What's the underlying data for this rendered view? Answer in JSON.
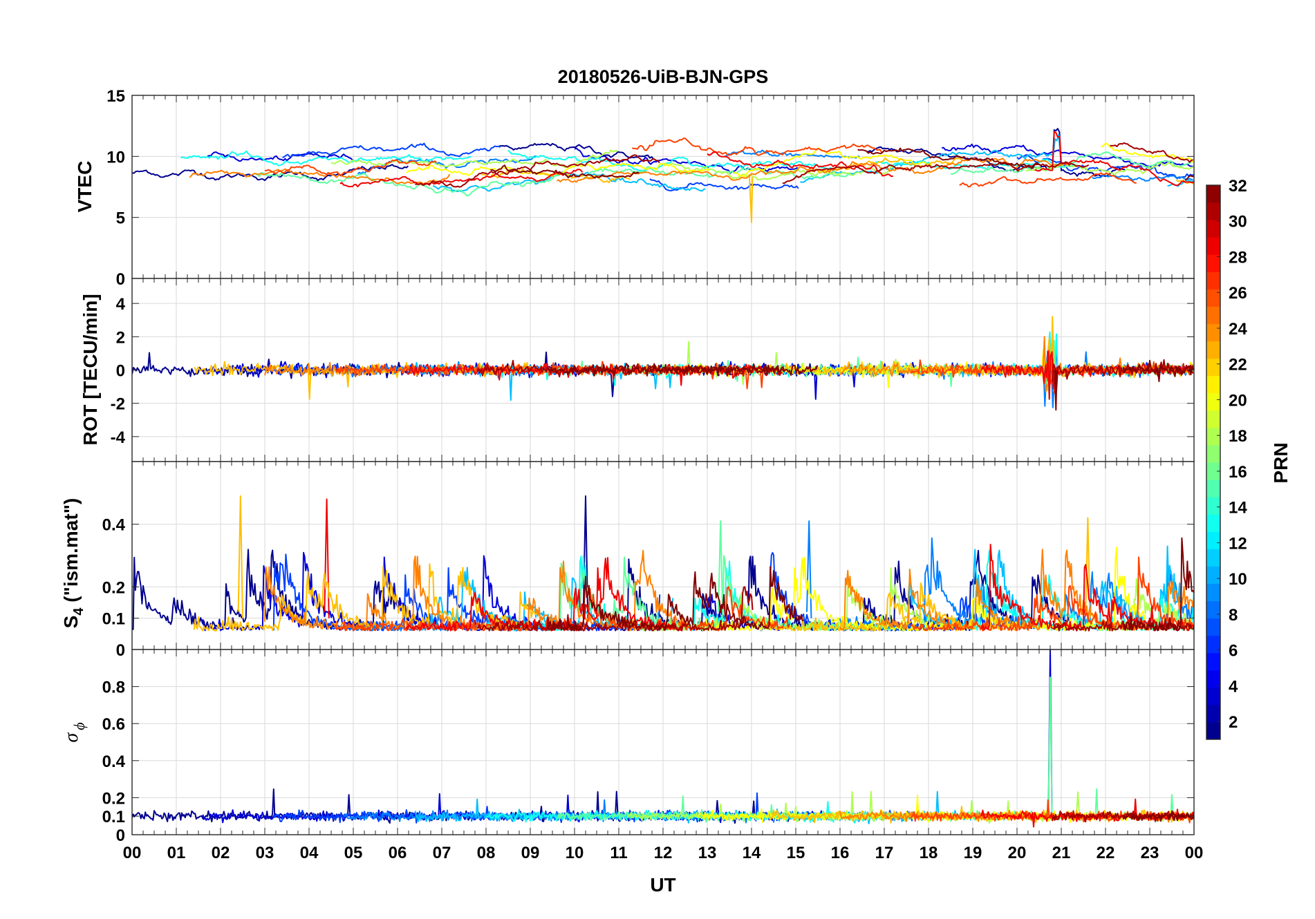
{
  "chart_data": {
    "type": "line",
    "title": "20180526-UiB-BJN-GPS",
    "xlabel": "UT",
    "x_range": [
      0,
      24
    ],
    "x_ticks": [
      "00",
      "01",
      "02",
      "03",
      "04",
      "05",
      "06",
      "07",
      "08",
      "09",
      "10",
      "11",
      "12",
      "13",
      "14",
      "15",
      "16",
      "17",
      "18",
      "19",
      "20",
      "21",
      "22",
      "23",
      "00"
    ],
    "panels": [
      {
        "name": "vtec",
        "ylabel": "VTEC",
        "ylim": [
          0,
          15
        ],
        "yticks": [
          0,
          5,
          10,
          15
        ],
        "ytick_labels": [
          "0",
          "5",
          "10",
          "15"
        ],
        "description_values": {
          "typical": [
            7,
            12
          ],
          "spike_time_UT": 20.9,
          "spike_max": 12.3,
          "dip_time_UT": 14.0,
          "dip_min": 4.6
        }
      },
      {
        "name": "rot",
        "ylabel": "ROT [TECU/min]",
        "ylim": [
          -5.5,
          5.5
        ],
        "yticks": [
          -4,
          -2,
          0,
          2,
          4
        ],
        "ytick_labels": [
          "-4",
          "-2",
          "0",
          "2",
          "4"
        ],
        "description_values": {
          "typical": [
            -0.6,
            0.6
          ],
          "spike_time_UT": 20.75,
          "spike_max": 3.2,
          "spike_min": -2.4
        }
      },
      {
        "name": "s4",
        "ylabel_main": "S",
        "ylabel_sub": "4",
        "ylabel_rest": " (\"ism.mat\")",
        "ylim": [
          0,
          0.6
        ],
        "yticks": [
          0.1,
          0.2,
          0.4
        ],
        "ytick_labels": [
          "0.1",
          "0.2",
          "0.4"
        ],
        "extra_zero_label": "0",
        "description_values": {
          "baseline": 0.06,
          "peaks": [
            [
              2.45,
              0.49
            ],
            [
              4.4,
              0.48
            ],
            [
              10.25,
              0.49
            ],
            [
              15.3,
              0.41
            ],
            [
              13.3,
              0.41
            ],
            [
              21.6,
              0.42
            ]
          ]
        }
      },
      {
        "name": "sigma_phi",
        "ylabel_main": "σ",
        "ylabel_sub": "ϕ",
        "ylim": [
          0,
          1
        ],
        "yticks": [
          0,
          0.1,
          0.2,
          0.4,
          0.6,
          0.8
        ],
        "ytick_labels": [
          "0",
          "0.1",
          "0.2",
          "0.4",
          "0.6",
          "0.8"
        ],
        "description_values": {
          "baseline": 0.1,
          "spike_time_UT": 20.75,
          "spike_max": 1.0
        }
      }
    ],
    "colorbar": {
      "label": "PRN",
      "range": [
        1,
        32
      ],
      "tick_values": [
        2,
        4,
        6,
        8,
        10,
        12,
        14,
        16,
        18,
        20,
        22,
        24,
        26,
        28,
        30,
        32
      ],
      "tick_labels": [
        "2",
        "4",
        "6",
        "8",
        "10",
        "12",
        "14",
        "16",
        "18",
        "20",
        "22",
        "24",
        "26",
        "28",
        "30",
        "32"
      ],
      "colormap": "jet"
    },
    "series_colors": [
      "#00008f",
      "#0000d9",
      "#0040ff",
      "#0080ff",
      "#00bfff",
      "#10ffef",
      "#60ff9f",
      "#afff50",
      "#ffff00",
      "#ffbf00",
      "#ff8000",
      "#ff4000",
      "#f00000",
      "#a50000",
      "#800000"
    ]
  }
}
